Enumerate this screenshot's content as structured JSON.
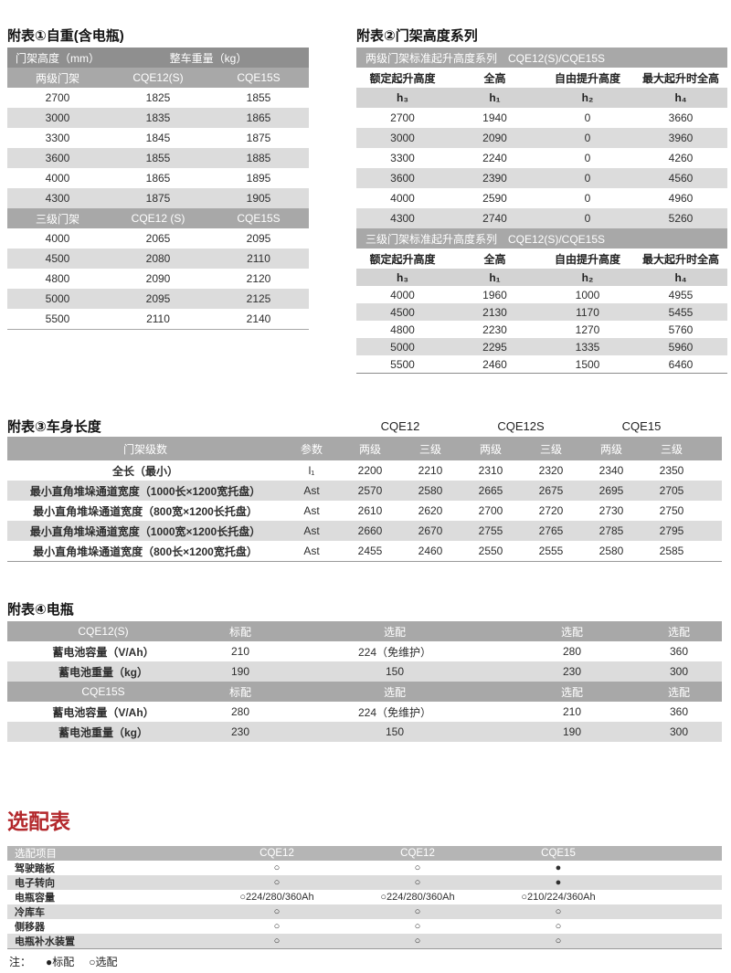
{
  "tables": {
    "t1": {
      "title": "附表①自重(含电瓶)",
      "head": {
        "c1": "门架高度（mm）",
        "c2": "整车重量（kg）"
      },
      "rows": [
        {
          "k": "mband",
          "c": [
            "两级门架",
            "CQE12(S)",
            "CQE15S"
          ]
        },
        {
          "c": [
            "2700",
            "1825",
            "1855"
          ]
        },
        {
          "c": [
            "3000",
            "1835",
            "1865"
          ]
        },
        {
          "c": [
            "3300",
            "1845",
            "1875"
          ]
        },
        {
          "c": [
            "3600",
            "1855",
            "1885"
          ]
        },
        {
          "c": [
            "4000",
            "1865",
            "1895"
          ]
        },
        {
          "c": [
            "4300",
            "1875",
            "1905"
          ]
        },
        {
          "k": "mband",
          "c": [
            "三级门架",
            "CQE12 (S)",
            "CQE15S"
          ]
        },
        {
          "c": [
            "4000",
            "2065",
            "2095"
          ]
        },
        {
          "c": [
            "4500",
            "2080",
            "2110"
          ]
        },
        {
          "c": [
            "4800",
            "2090",
            "2120"
          ]
        },
        {
          "c": [
            "5000",
            "2095",
            "2125"
          ]
        },
        {
          "c": [
            "5500",
            "2110",
            "2140"
          ]
        }
      ]
    },
    "t2": {
      "title": "附表②门架高度系列",
      "rows": [
        {
          "k": "band",
          "c": [
            "两级门架标准起升高度系列　CQE12(S)/CQE15S"
          ]
        },
        {
          "k": "head",
          "c": [
            "额定起升高度",
            "全高",
            "自由提升高度",
            "最大起升时全高"
          ]
        },
        {
          "k": "sub",
          "c": [
            "h₃",
            "h₁",
            "h₂",
            "h₄"
          ]
        },
        {
          "c": [
            "2700",
            "1940",
            "0",
            "3660"
          ]
        },
        {
          "c": [
            "3000",
            "2090",
            "0",
            "3960"
          ]
        },
        {
          "c": [
            "3300",
            "2240",
            "0",
            "4260"
          ]
        },
        {
          "c": [
            "3600",
            "2390",
            "0",
            "4560"
          ]
        },
        {
          "c": [
            "4000",
            "2590",
            "0",
            "4960"
          ]
        },
        {
          "c": [
            "4300",
            "2740",
            "0",
            "5260"
          ]
        },
        {
          "k": "band",
          "c": [
            "三级门架标准起升高度系列　CQE12(S)/CQE15S"
          ]
        },
        {
          "k": "head",
          "c": [
            "额定起升高度",
            "全高",
            "自由提升高度",
            "最大起升时全高"
          ]
        },
        {
          "k": "sub",
          "z": 1,
          "c": [
            "h₃",
            "h₁",
            "h₂",
            "h₄"
          ]
        },
        {
          "z": 1,
          "c": [
            "4000",
            "1960",
            "1000",
            "4955"
          ]
        },
        {
          "z": 1,
          "c": [
            "4500",
            "2130",
            "1170",
            "5455"
          ]
        },
        {
          "z": 1,
          "c": [
            "4800",
            "2230",
            "1270",
            "5760"
          ]
        },
        {
          "z": 1,
          "c": [
            "5000",
            "2295",
            "1335",
            "5960"
          ]
        },
        {
          "z": 1,
          "c": [
            "5500",
            "2460",
            "1500",
            "6460"
          ]
        }
      ]
    },
    "t3": {
      "title": "附表③车身长度",
      "groups": [
        "CQE12",
        "CQE12S",
        "CQE15"
      ],
      "head": [
        "门架级数",
        "参数",
        "两级",
        "三级",
        "两级",
        "三级",
        "两级",
        "三级"
      ],
      "rows": [
        {
          "c": [
            "全长（最小）",
            "l₁",
            "2200",
            "2210",
            "2310",
            "2320",
            "2340",
            "2350"
          ]
        },
        {
          "c": [
            "最小直角堆垛通道宽度（1000长×1200宽托盘）",
            "Ast",
            "2570",
            "2580",
            "2665",
            "2675",
            "2695",
            "2705"
          ]
        },
        {
          "c": [
            "最小直角堆垛通道宽度（800宽×1200长托盘）",
            "Ast",
            "2610",
            "2620",
            "2700",
            "2720",
            "2730",
            "2750"
          ]
        },
        {
          "c": [
            "最小直角堆垛通道宽度（1000宽×1200长托盘）",
            "Ast",
            "2660",
            "2670",
            "2755",
            "2765",
            "2785",
            "2795"
          ]
        },
        {
          "c": [
            "最小直角堆垛通道宽度（800长×1200宽托盘）",
            "Ast",
            "2455",
            "2460",
            "2550",
            "2555",
            "2580",
            "2585"
          ]
        }
      ]
    },
    "t4": {
      "title": "附表④电瓶",
      "rows": [
        {
          "k": "mband",
          "c": [
            "CQE12(S)",
            "标配",
            "选配",
            "选配",
            "选配"
          ]
        },
        {
          "c": [
            "蓄电池容量（V/Ah）",
            "210",
            "224（免维护）",
            "280",
            "360"
          ]
        },
        {
          "c": [
            "蓄电池重量（kg）",
            "190",
            "150",
            "230",
            "300"
          ]
        },
        {
          "k": "mband",
          "c": [
            "CQE15S",
            "标配",
            "选配",
            "选配",
            "选配"
          ]
        },
        {
          "c": [
            "蓄电池容量（V/Ah）",
            "280",
            "224（免维护）",
            "210",
            "360"
          ]
        },
        {
          "c": [
            "蓄电池重量（kg）",
            "230",
            "150",
            "190",
            "300"
          ]
        }
      ]
    },
    "t5": {
      "title": "选配表",
      "rows": [
        {
          "k": "mband",
          "c": [
            "选配项目",
            "CQE12",
            "CQE12",
            "CQE15"
          ]
        },
        {
          "c": [
            "驾驶踏板",
            "○",
            "○",
            "●"
          ]
        },
        {
          "c": [
            "电子转向",
            "○",
            "○",
            "●"
          ]
        },
        {
          "c": [
            "电瓶容量",
            "○224/280/360Ah",
            "○224/280/360Ah",
            "○210/224/360Ah"
          ]
        },
        {
          "c": [
            "冷库车",
            "○",
            "○",
            "○"
          ]
        },
        {
          "c": [
            "侧移器",
            "○",
            "○",
            "○"
          ]
        },
        {
          "c": [
            "电瓶补水装置",
            "○",
            "○",
            "○"
          ]
        }
      ],
      "note": {
        "label": "注：",
        "standard": "●标配",
        "optional": "○选配"
      }
    }
  },
  "colors": {
    "dark_band": "#8f8f8f",
    "medium_band": "#a8a8a8",
    "light_band": "#b5b5b5",
    "stripe": "#dcdcdc",
    "subheader": "#d3d3d3",
    "accent_red": "#b3282c"
  }
}
